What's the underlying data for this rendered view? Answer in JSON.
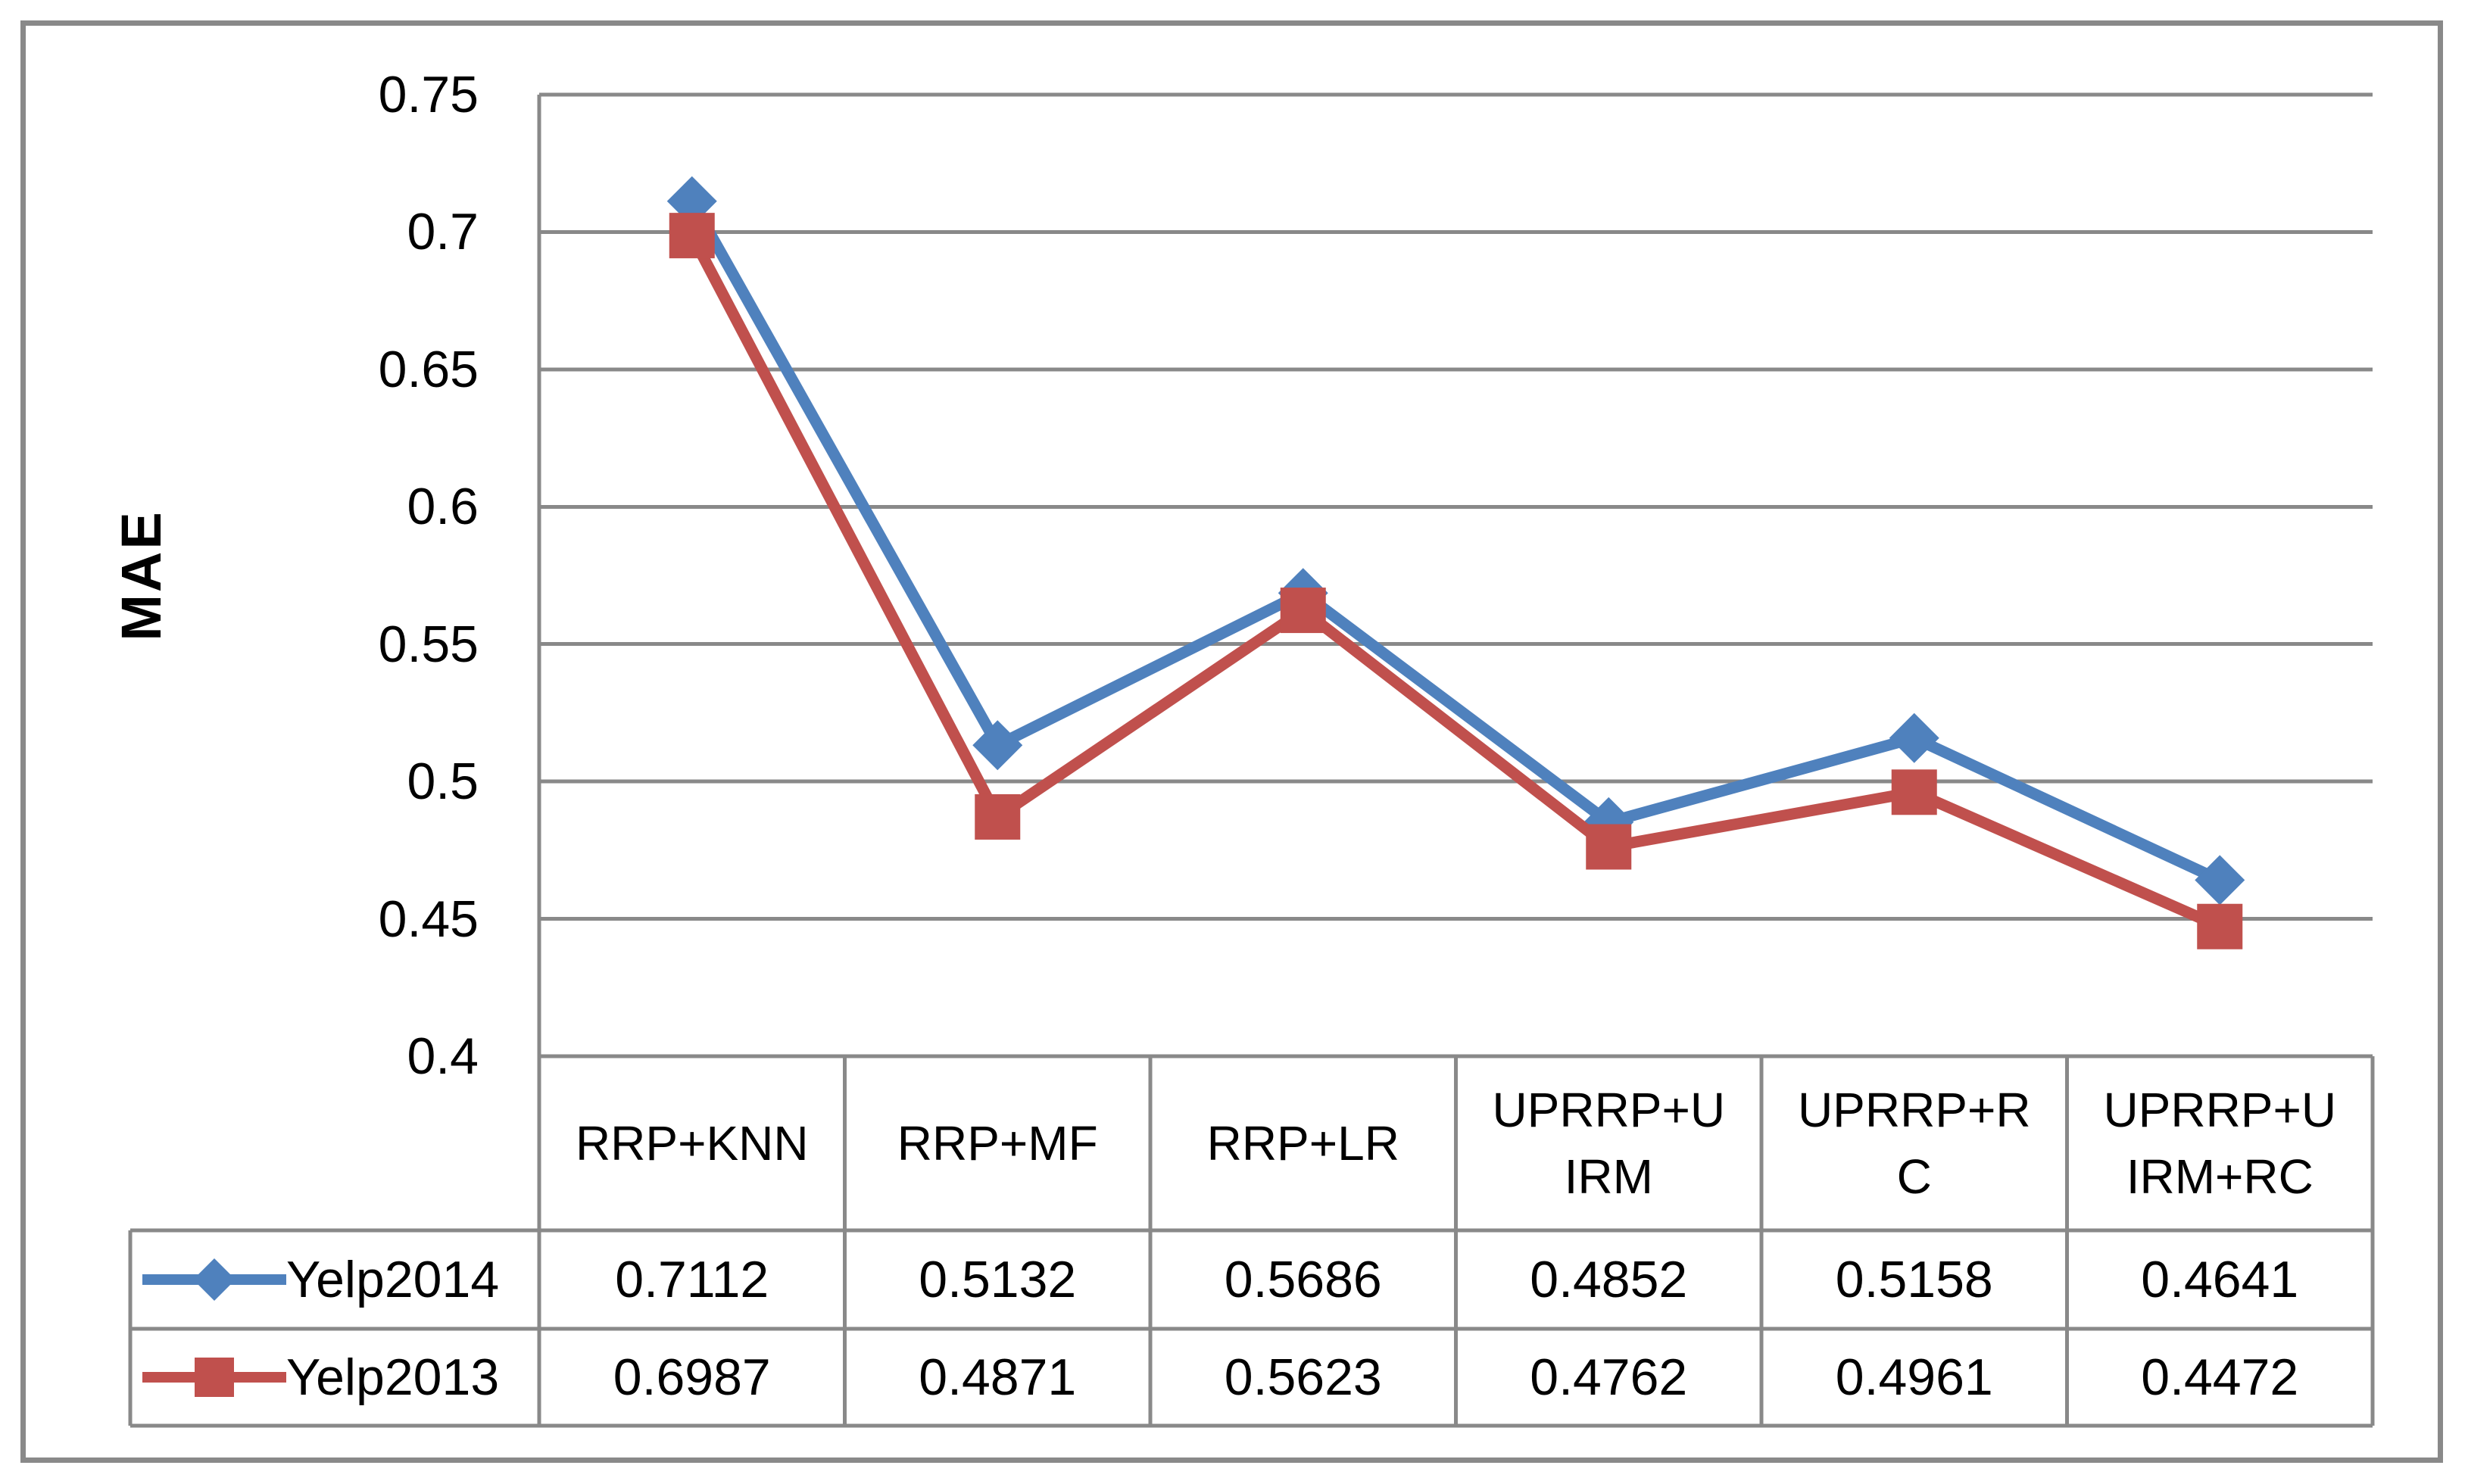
{
  "chart_data": {
    "type": "line",
    "title": "",
    "xlabel": "",
    "ylabel": "MAE",
    "categories": [
      "RRP+KNN",
      "RRP+MF",
      "RRP+LR",
      "UPRRP+UIRM",
      "UPRRP+RC",
      "UPRRP+UIRM+RC"
    ],
    "categories_wrapped": [
      [
        "RRP+KNN"
      ],
      [
        "RRP+MF"
      ],
      [
        "RRP+LR"
      ],
      [
        "UPRRP+U",
        "IRM"
      ],
      [
        "UPRRP+R",
        "C"
      ],
      [
        "UPRRP+U",
        "IRM+RC"
      ]
    ],
    "series": [
      {
        "name": "Yelp2014",
        "color": "#4F81BD",
        "marker": "diamond",
        "values": [
          0.7112,
          0.5132,
          0.5686,
          0.4852,
          0.5158,
          0.4641
        ]
      },
      {
        "name": "Yelp2013",
        "color": "#C0504D",
        "marker": "square",
        "values": [
          0.6987,
          0.4871,
          0.5623,
          0.4762,
          0.4961,
          0.4472
        ]
      }
    ],
    "y_axis": {
      "min": 0.4,
      "max": 0.75,
      "step": 0.05,
      "tick_labels": [
        "0.4",
        "0.45",
        "0.5",
        "0.55",
        "0.6",
        "0.65",
        "0.7",
        "0.75"
      ]
    },
    "grid": true,
    "legend_position": "table-left",
    "value_decimals": 4,
    "colors": {
      "gridline": "#898989",
      "table_border": "#898989",
      "outer_border": "#898989",
      "text": "#000000",
      "background": "#FFFFFF"
    }
  }
}
